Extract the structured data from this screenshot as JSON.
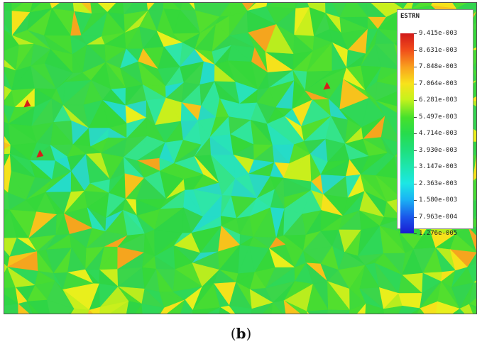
{
  "legend": {
    "title": "ESTRN",
    "values": [
      "9.415e-003",
      "8.631e-003",
      "7.848e-003",
      "7.064e-003",
      "6.281e-003",
      "5.497e-003",
      "4.714e-003",
      "3.930e-003",
      "3.147e-003",
      "2.363e-003",
      "1.580e-003",
      "7.963e-004",
      "1.276e-005"
    ],
    "colors": [
      "#d11a1a",
      "#f04a1a",
      "#f9a21e",
      "#f8e21b",
      "#c6f21c",
      "#46e12b",
      "#27dc4c",
      "#1fdf7a",
      "#1de6b0",
      "#1ce7e4",
      "#1ab3f4",
      "#1a55ea",
      "#1a1ad2"
    ]
  },
  "caption": {
    "open": "(",
    "letter": "b",
    "close": ")"
  }
}
